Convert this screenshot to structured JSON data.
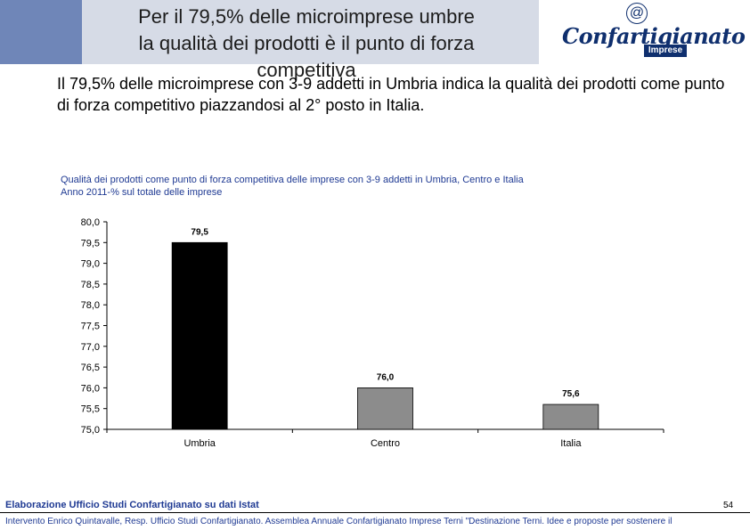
{
  "slide": {
    "title_line1": "Per il 79,5% delle microimprese umbre",
    "title_line2": "la qualità dei prodotti è il punto di forza",
    "title_line3": "competitiva",
    "intro": "Il 79,5% delle microimprese con 3-9 addetti in Umbria indica la qualità dei prodotti come punto di forza competitivo piazzandosi al 2° posto in Italia.",
    "source": "Elaborazione Ufficio Studi Confartigianato su dati Istat",
    "page_number": "54",
    "footer": "Intervento Enrico Quintavalle, Resp. Ufficio Studi Confartigianato. Assemblea Annuale Confartigianato Imprese Terni \"Destinazione Terni. Idee e proposte per sostenere il"
  },
  "logo": {
    "at_symbol": "@",
    "brand": "Confartigianato",
    "sub": "Imprese"
  },
  "colors": {
    "header_band": "#d6dbe6",
    "left_block": "#6f86b8",
    "brand_blue": "#0f2f6e",
    "caption_blue": "#1f3a93",
    "bar_umbria": "#000000",
    "bar_other": "#8c8c8c"
  },
  "chart_data": {
    "type": "bar",
    "title_line1": "Qualità dei prodotti come punto di forza competitiva delle imprese con 3-9 addetti in Umbria, Centro e Italia",
    "title_line2": "Anno 2011-% sul totale delle imprese",
    "categories": [
      "Umbria",
      "Centro",
      "Italia"
    ],
    "values": [
      79.5,
      76.0,
      75.6
    ],
    "value_labels": [
      "79,5",
      "76,0",
      "75,6"
    ],
    "ylim": [
      75.0,
      80.0
    ],
    "yticks": [
      75.0,
      75.5,
      76.0,
      76.5,
      77.0,
      77.5,
      78.0,
      78.5,
      79.0,
      79.5,
      80.0
    ],
    "ytick_labels": [
      "75,0",
      "75,5",
      "76,0",
      "76,5",
      "77,0",
      "77,5",
      "78,0",
      "78,5",
      "79,0",
      "79,5",
      "80,0"
    ],
    "xlabel": "",
    "ylabel": "",
    "grid": false,
    "legend": "none"
  }
}
